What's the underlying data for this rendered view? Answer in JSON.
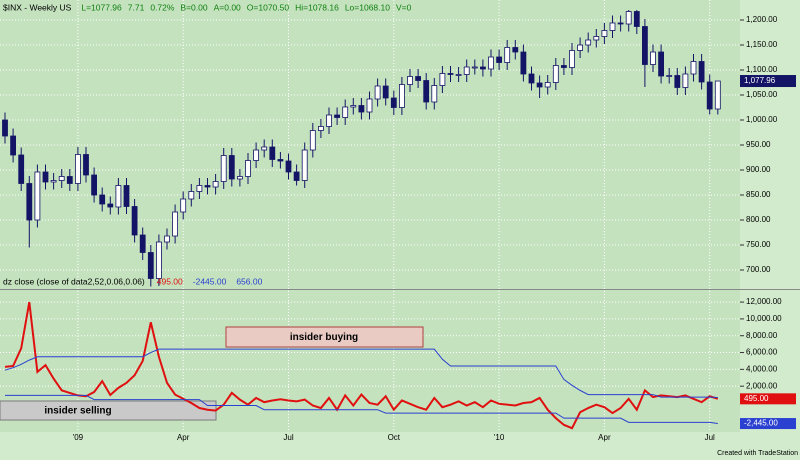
{
  "chart_data": [
    {
      "type": "candlestick",
      "title": "$INX - Weekly  US",
      "header_stats": [
        "L=1077.96",
        "7.71",
        "0.72%",
        "B=0.00",
        "A=0.00",
        "O=1070.50",
        "Hi=1078.16",
        "Lo=1068.10",
        "V=0"
      ],
      "categories": [
        null,
        null,
        null,
        null,
        null,
        null,
        null,
        null,
        null,
        "'09",
        null,
        null,
        null,
        null,
        null,
        null,
        null,
        null,
        null,
        null,
        null,
        null,
        "Apr",
        null,
        null,
        null,
        null,
        null,
        null,
        null,
        null,
        null,
        null,
        null,
        null,
        "Jul",
        null,
        null,
        null,
        null,
        null,
        null,
        null,
        null,
        null,
        null,
        null,
        null,
        "Oct",
        null,
        null,
        null,
        null,
        null,
        null,
        null,
        null,
        null,
        null,
        null,
        null,
        "'10",
        null,
        null,
        null,
        null,
        null,
        null,
        null,
        null,
        null,
        null,
        null,
        null,
        "Apr",
        null,
        null,
        null,
        null,
        null,
        null,
        null,
        null,
        null,
        null,
        null,
        null,
        "Jul",
        null
      ],
      "open": [
        1000,
        968,
        930,
        873,
        800,
        896,
        876,
        879,
        887,
        873,
        931,
        890,
        850,
        832,
        826,
        869,
        827,
        770,
        735,
        683,
        756,
        768,
        816,
        842,
        857,
        869,
        866,
        877,
        929,
        882,
        887,
        919,
        940,
        946,
        921,
        918,
        896,
        879,
        940,
        979,
        987,
        1010,
        1005,
        1026,
        1029,
        1016,
        1042,
        1068,
        1044,
        1025,
        1071,
        1087,
        1079,
        1036,
        1069,
        1093,
        1091,
        1091,
        1106,
        1106,
        1102,
        1126,
        1115,
        1145,
        1136,
        1092,
        1074,
        1066,
        1075,
        1109,
        1105,
        1139,
        1150,
        1160,
        1167,
        1179,
        1194,
        1192,
        1217,
        1187,
        1111,
        1136,
        1088,
        1089,
        1065,
        1092,
        1117,
        1076,
        1022
      ],
      "high": [
        1015,
        983,
        945,
        888,
        911,
        911,
        894,
        902,
        902,
        946,
        946,
        905,
        865,
        847,
        884,
        884,
        842,
        785,
        750,
        771,
        783,
        831,
        857,
        872,
        884,
        884,
        892,
        944,
        944,
        902,
        934,
        955,
        961,
        961,
        936,
        933,
        911,
        955,
        994,
        1002,
        1025,
        1025,
        1041,
        1044,
        1044,
        1057,
        1083,
        1083,
        1059,
        1086,
        1102,
        1102,
        1094,
        1084,
        1108,
        1108,
        1106,
        1121,
        1121,
        1121,
        1141,
        1141,
        1160,
        1160,
        1151,
        1107,
        1089,
        1090,
        1124,
        1124,
        1154,
        1165,
        1175,
        1182,
        1194,
        1209,
        1209,
        1220,
        1220,
        1202,
        1151,
        1151,
        1104,
        1104,
        1107,
        1132,
        1132,
        1091,
        1078.16
      ],
      "low": [
        953,
        915,
        858,
        745,
        785,
        861,
        861,
        864,
        858,
        858,
        875,
        835,
        817,
        811,
        811,
        812,
        755,
        720,
        667,
        668,
        741,
        753,
        801,
        827,
        842,
        851,
        851,
        862,
        867,
        867,
        872,
        904,
        925,
        906,
        903,
        881,
        869,
        864,
        925,
        964,
        972,
        990,
        990,
        1011,
        1001,
        1001,
        1027,
        1029,
        1010,
        1010,
        1056,
        1064,
        1021,
        1021,
        1054,
        1076,
        1076,
        1076,
        1091,
        1087,
        1087,
        1100,
        1100,
        1121,
        1077,
        1059,
        1044,
        1051,
        1060,
        1090,
        1090,
        1124,
        1135,
        1145,
        1152,
        1164,
        1177,
        1177,
        1172,
        1066,
        1096,
        1073,
        1073,
        1050,
        1050,
        1077,
        1061,
        1011,
        1011
      ],
      "close": [
        968,
        930,
        873,
        800,
        896,
        876,
        879,
        887,
        873,
        931,
        890,
        850,
        832,
        826,
        869,
        827,
        770,
        735,
        683,
        756,
        768,
        816,
        842,
        857,
        869,
        866,
        877,
        929,
        882,
        887,
        919,
        940,
        946,
        921,
        918,
        896,
        879,
        940,
        979,
        987,
        1010,
        1005,
        1026,
        1029,
        1016,
        1042,
        1068,
        1044,
        1025,
        1071,
        1087,
        1079,
        1036,
        1069,
        1093,
        1091,
        1091,
        1106,
        1106,
        1102,
        1126,
        1115,
        1145,
        1136,
        1092,
        1074,
        1066,
        1075,
        1109,
        1105,
        1139,
        1150,
        1160,
        1167,
        1179,
        1194,
        1192,
        1217,
        1187,
        1111,
        1136,
        1088,
        1089,
        1065,
        1092,
        1117,
        1076,
        1022,
        1077.96
      ],
      "last_label": "1,077.96",
      "up_color": "#ffffff",
      "down_color": "#141466",
      "ylim": [
        666,
        1236
      ],
      "yticks": [
        {
          "value": 700,
          "label": "700.00"
        },
        {
          "value": 750,
          "label": "750.00"
        },
        {
          "value": 800,
          "label": "800.00"
        },
        {
          "value": 850,
          "label": "850.00"
        },
        {
          "value": 900,
          "label": "900.00"
        },
        {
          "value": 950,
          "label": "950.00"
        },
        {
          "value": 1000,
          "label": "1,000.00"
        },
        {
          "value": 1050,
          "label": "1,050.00"
        },
        {
          "value": 1100,
          "label": "1,100.00"
        },
        {
          "value": 1150,
          "label": "1,150.00"
        },
        {
          "value": 1200,
          "label": "1,200.00"
        }
      ],
      "grid": true
    },
    {
      "type": "line",
      "title": "dz close (close of data2,52,0.06,0.06)",
      "series": [
        {
          "color": "#e01010",
          "width": 2,
          "tag": true,
          "value_label": "495.00",
          "values": [
            4300,
            4400,
            6500,
            12000,
            3700,
            4500,
            2900,
            1500,
            1200,
            900,
            800,
            1300,
            2600,
            950,
            1800,
            2400,
            3300,
            5000,
            9600,
            5500,
            2400,
            1000,
            500,
            0,
            -600,
            -800,
            -900,
            -200,
            1200,
            400,
            -200,
            600,
            100,
            300,
            450,
            300,
            200,
            400,
            -300,
            -600,
            600,
            -800,
            900,
            -300,
            1000,
            0,
            -200,
            800,
            -800,
            300,
            -100,
            -500,
            -800,
            600,
            -500,
            -200,
            200,
            -300,
            100,
            -500,
            300,
            -100,
            -200,
            -300,
            0,
            100,
            600,
            -800,
            -1800,
            -2600,
            -3000,
            -1100,
            -600,
            -200,
            -500,
            -1200,
            -600,
            500,
            -800,
            1500,
            700,
            900,
            800,
            700,
            900,
            500,
            100,
            800,
            495
          ]
        },
        {
          "color": "#2a40d0",
          "width": 1,
          "tag": true,
          "value_label": "-2445.00",
          "tag_label": "-2,445.00",
          "values": [
            900,
            900,
            900,
            900,
            900,
            900,
            900,
            900,
            900,
            900,
            900,
            400,
            400,
            400,
            400,
            400,
            400,
            400,
            400,
            400,
            400,
            400,
            400,
            400,
            400,
            -300,
            -300,
            -300,
            -300,
            -300,
            -300,
            -300,
            -800,
            -800,
            -800,
            -800,
            -800,
            -800,
            -800,
            -800,
            -800,
            -800,
            -800,
            -800,
            -800,
            -800,
            -800,
            -1200,
            -1200,
            -1200,
            -1200,
            -1200,
            -1200,
            -1200,
            -1200,
            -1200,
            -1200,
            -1200,
            -1200,
            -1200,
            -1200,
            -1200,
            -1200,
            -1200,
            -1200,
            -1200,
            -1200,
            -1200,
            -1200,
            -1800,
            -1800,
            -1800,
            -1800,
            -1800,
            -1800,
            -1800,
            -1800,
            -2300,
            -2300,
            -2300,
            -2300,
            -2300,
            -2300,
            -2300,
            -2300,
            -2300,
            -2300,
            -2300,
            -2445
          ]
        },
        {
          "color": "#2a40d0",
          "width": 1,
          "tag": false,
          "value_label": "656.00",
          "values": [
            3900,
            4200,
            4600,
            5100,
            5500,
            5500,
            5500,
            5500,
            5500,
            5500,
            5500,
            5500,
            5500,
            5500,
            5500,
            5500,
            5500,
            5500,
            6000,
            6400,
            6400,
            6400,
            6400,
            6400,
            6400,
            6400,
            6400,
            6400,
            6400,
            6400,
            6400,
            6400,
            6400,
            6400,
            6400,
            6400,
            6400,
            6400,
            6400,
            6400,
            6400,
            6400,
            6400,
            6400,
            6400,
            6400,
            6400,
            6400,
            6400,
            6400,
            6400,
            6400,
            6400,
            6400,
            5200,
            4400,
            4400,
            4400,
            4400,
            4400,
            4400,
            4400,
            4400,
            4400,
            4400,
            4400,
            4400,
            4400,
            4400,
            2800,
            2100,
            1500,
            1000,
            1000,
            1000,
            1000,
            1000,
            1000,
            1000,
            1000,
            1000,
            700,
            700,
            700,
            700,
            700,
            700,
            700,
            656
          ]
        }
      ],
      "annotations": [
        "insider buying",
        "insider selling"
      ],
      "ylim": [
        -3450,
        13200
      ],
      "yticks": [
        {
          "value": 2000,
          "label": "2,000.00"
        },
        {
          "value": 4000,
          "label": "4,000.00"
        },
        {
          "value": 6000,
          "label": "6,000.00"
        },
        {
          "value": 8000,
          "label": "8,000.00"
        },
        {
          "value": 10000,
          "label": "10,000.00"
        },
        {
          "value": 12000,
          "label": "12,000.00"
        }
      ],
      "grid": true
    }
  ],
  "footer": "Created with TradeStation"
}
